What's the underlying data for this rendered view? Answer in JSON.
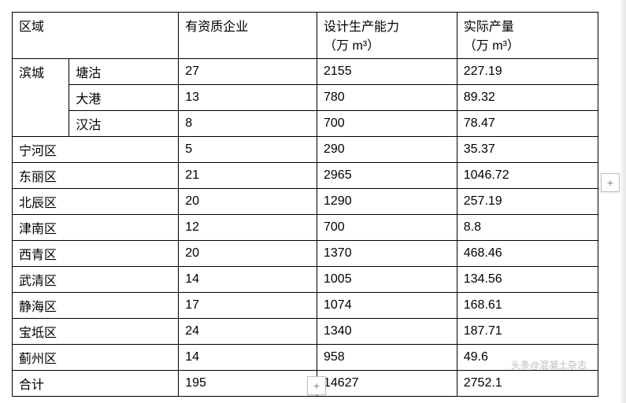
{
  "table": {
    "type": "table",
    "background_color": "#ffffff",
    "border_color": "#000000",
    "text_color": "#000000",
    "font_size": 16,
    "header": {
      "region": "区域",
      "companies": "有资质企业",
      "capacity_line1": "设计生产能力",
      "capacity_line2": "（万 m³）",
      "output_line1": "实际产量",
      "output_line2": "（万 m³）"
    },
    "bincheng_label": "滨城",
    "bincheng_rows": [
      {
        "sub": "塘沽",
        "companies": "27",
        "capacity": "2155",
        "output": "227.19"
      },
      {
        "sub": "大港",
        "companies": "13",
        "capacity": "780",
        "output": "89.32"
      },
      {
        "sub": "汉沽",
        "companies": "8",
        "capacity": "700",
        "output": "78.47"
      }
    ],
    "rows": [
      {
        "region": "宁河区",
        "companies": "5",
        "capacity": "290",
        "output": "35.37"
      },
      {
        "region": "东丽区",
        "companies": "21",
        "capacity": "2965",
        "output": "1046.72"
      },
      {
        "region": "北辰区",
        "companies": "20",
        "capacity": "1290",
        "output": "257.19"
      },
      {
        "region": "津南区",
        "companies": "12",
        "capacity": "700",
        "output": "8.8"
      },
      {
        "region": "西青区",
        "companies": "20",
        "capacity": "1370",
        "output": "468.46"
      },
      {
        "region": "武清区",
        "companies": "14",
        "capacity": "1005",
        "output": "134.56"
      },
      {
        "region": "静海区",
        "companies": "17",
        "capacity": "1074",
        "output": "168.61"
      },
      {
        "region": "宝坻区",
        "companies": "24",
        "capacity": "1340",
        "output": "187.71"
      },
      {
        "region": "蓟州区",
        "companies": "14",
        "capacity": "958",
        "output": "49.6"
      }
    ],
    "total": {
      "label": "合计",
      "companies": "195",
      "capacity": "14627",
      "output": "2752.1"
    }
  },
  "watermark": "头条@混凝土杂志",
  "plus_glyph": "+"
}
